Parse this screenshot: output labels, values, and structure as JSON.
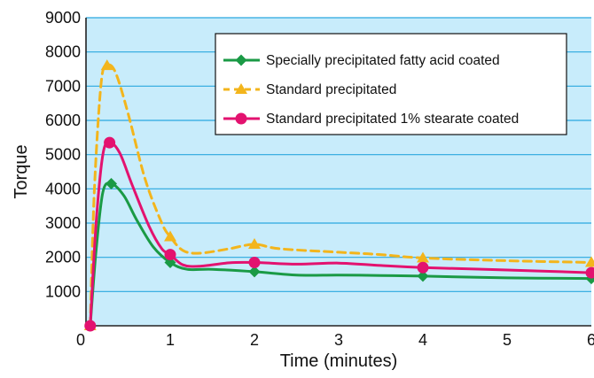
{
  "chart_data": {
    "type": "line",
    "title": "",
    "xlabel": "Time (minutes)",
    "ylabel": "Torque",
    "xlim": [
      0,
      6
    ],
    "ylim": [
      0,
      9000
    ],
    "x_ticks": [
      "0",
      "1",
      "2",
      "3",
      "4",
      "5",
      "6"
    ],
    "y_ticks": [
      "1000",
      "2000",
      "3000",
      "4000",
      "5000",
      "6000",
      "7000",
      "8000",
      "9000"
    ],
    "grid": "horizontal",
    "legend_position": "top-right",
    "background_color": "#c8ecfb",
    "grid_color": "#2aa7df",
    "series": [
      {
        "name": "Specially precipitated fatty acid coated",
        "color": "#1a9a45",
        "line_style": "solid",
        "marker": "diamond",
        "points": [
          {
            "x": 0.05,
            "y": 0
          },
          {
            "x": 0.3,
            "y": 4150
          },
          {
            "x": 1.0,
            "y": 1850
          },
          {
            "x": 2.0,
            "y": 1580
          },
          {
            "x": 4.0,
            "y": 1450
          },
          {
            "x": 6.0,
            "y": 1380
          }
        ],
        "curve": [
          {
            "x": 0.05,
            "y": 0
          },
          {
            "x": 0.12,
            "y": 2200
          },
          {
            "x": 0.2,
            "y": 3900
          },
          {
            "x": 0.3,
            "y": 4150
          },
          {
            "x": 0.45,
            "y": 3800
          },
          {
            "x": 0.6,
            "y": 3100
          },
          {
            "x": 0.8,
            "y": 2300
          },
          {
            "x": 1.0,
            "y": 1850
          },
          {
            "x": 1.2,
            "y": 1650
          },
          {
            "x": 1.5,
            "y": 1650
          },
          {
            "x": 2.0,
            "y": 1580
          },
          {
            "x": 2.5,
            "y": 1480
          },
          {
            "x": 3.0,
            "y": 1480
          },
          {
            "x": 3.5,
            "y": 1470
          },
          {
            "x": 4.0,
            "y": 1450
          },
          {
            "x": 5.0,
            "y": 1400
          },
          {
            "x": 6.0,
            "y": 1380
          }
        ]
      },
      {
        "name": "Standard precipitated",
        "color": "#f3b51c",
        "line_style": "dashed",
        "marker": "triangle",
        "points": [
          {
            "x": 0.05,
            "y": 0
          },
          {
            "x": 0.25,
            "y": 7600
          },
          {
            "x": 1.0,
            "y": 2600
          },
          {
            "x": 2.0,
            "y": 2380
          },
          {
            "x": 4.0,
            "y": 1980
          },
          {
            "x": 6.0,
            "y": 1850
          }
        ],
        "curve": [
          {
            "x": 0.05,
            "y": 0
          },
          {
            "x": 0.1,
            "y": 4000
          },
          {
            "x": 0.18,
            "y": 7100
          },
          {
            "x": 0.25,
            "y": 7600
          },
          {
            "x": 0.35,
            "y": 7400
          },
          {
            "x": 0.5,
            "y": 6200
          },
          {
            "x": 0.7,
            "y": 4300
          },
          {
            "x": 0.9,
            "y": 3000
          },
          {
            "x": 1.0,
            "y": 2600
          },
          {
            "x": 1.15,
            "y": 2200
          },
          {
            "x": 1.35,
            "y": 2120
          },
          {
            "x": 1.7,
            "y": 2250
          },
          {
            "x": 2.0,
            "y": 2380
          },
          {
            "x": 2.3,
            "y": 2250
          },
          {
            "x": 3.0,
            "y": 2150
          },
          {
            "x": 3.5,
            "y": 2080
          },
          {
            "x": 4.0,
            "y": 1980
          },
          {
            "x": 5.0,
            "y": 1900
          },
          {
            "x": 6.0,
            "y": 1850
          }
        ]
      },
      {
        "name": "Standard precipitated 1% stearate coated",
        "color": "#e3126f",
        "line_style": "solid",
        "marker": "circle",
        "points": [
          {
            "x": 0.05,
            "y": 0
          },
          {
            "x": 0.28,
            "y": 5350
          },
          {
            "x": 1.0,
            "y": 2080
          },
          {
            "x": 2.0,
            "y": 1850
          },
          {
            "x": 4.0,
            "y": 1700
          },
          {
            "x": 6.0,
            "y": 1550
          }
        ],
        "curve": [
          {
            "x": 0.05,
            "y": 0
          },
          {
            "x": 0.12,
            "y": 3000
          },
          {
            "x": 0.2,
            "y": 5000
          },
          {
            "x": 0.28,
            "y": 5350
          },
          {
            "x": 0.4,
            "y": 5050
          },
          {
            "x": 0.55,
            "y": 4100
          },
          {
            "x": 0.75,
            "y": 2900
          },
          {
            "x": 0.9,
            "y": 2250
          },
          {
            "x": 1.0,
            "y": 2080
          },
          {
            "x": 1.15,
            "y": 1780
          },
          {
            "x": 1.35,
            "y": 1740
          },
          {
            "x": 1.7,
            "y": 1840
          },
          {
            "x": 2.0,
            "y": 1850
          },
          {
            "x": 2.5,
            "y": 1800
          },
          {
            "x": 3.0,
            "y": 1830
          },
          {
            "x": 3.5,
            "y": 1760
          },
          {
            "x": 4.0,
            "y": 1700
          },
          {
            "x": 5.0,
            "y": 1630
          },
          {
            "x": 6.0,
            "y": 1550
          }
        ]
      }
    ]
  }
}
